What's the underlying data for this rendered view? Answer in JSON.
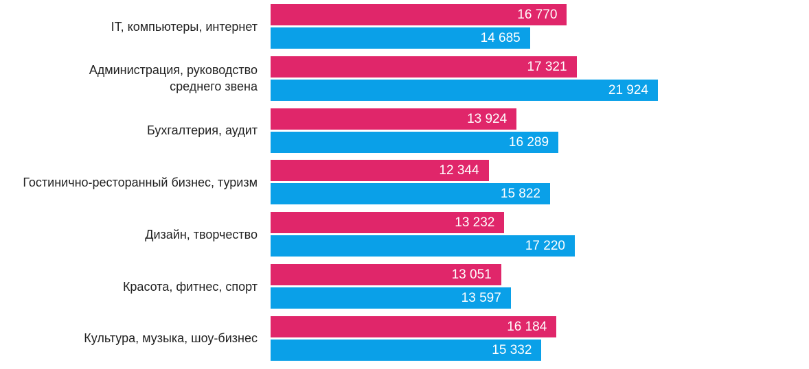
{
  "chart_data": {
    "type": "bar",
    "orientation": "horizontal",
    "categories": [
      "IT, компьютеры, интернет",
      "Администрация, руководство среднего звена",
      "Бухгалтерия, аудит",
      "Гостинично-ресторанный бизнес, туризм",
      "Дизайн, творчество",
      "Красота, фитнес, спорт",
      "Культура, музыка, шоу-бизнес"
    ],
    "series": [
      {
        "color": "#e0266a",
        "values": [
          16770,
          17321,
          13924,
          12344,
          13232,
          13051,
          16184
        ],
        "value_labels": [
          "16 770",
          "17 321",
          "13 924",
          "12 344",
          "13 232",
          "13 051",
          "16 184"
        ]
      },
      {
        "color": "#0aa0e8",
        "values": [
          14685,
          21924,
          16289,
          15822,
          17220,
          13597,
          15332
        ],
        "value_labels": [
          "14 685",
          "21 924",
          "16 289",
          "15 822",
          "17 220",
          "13 597",
          "15 332"
        ]
      }
    ]
  }
}
